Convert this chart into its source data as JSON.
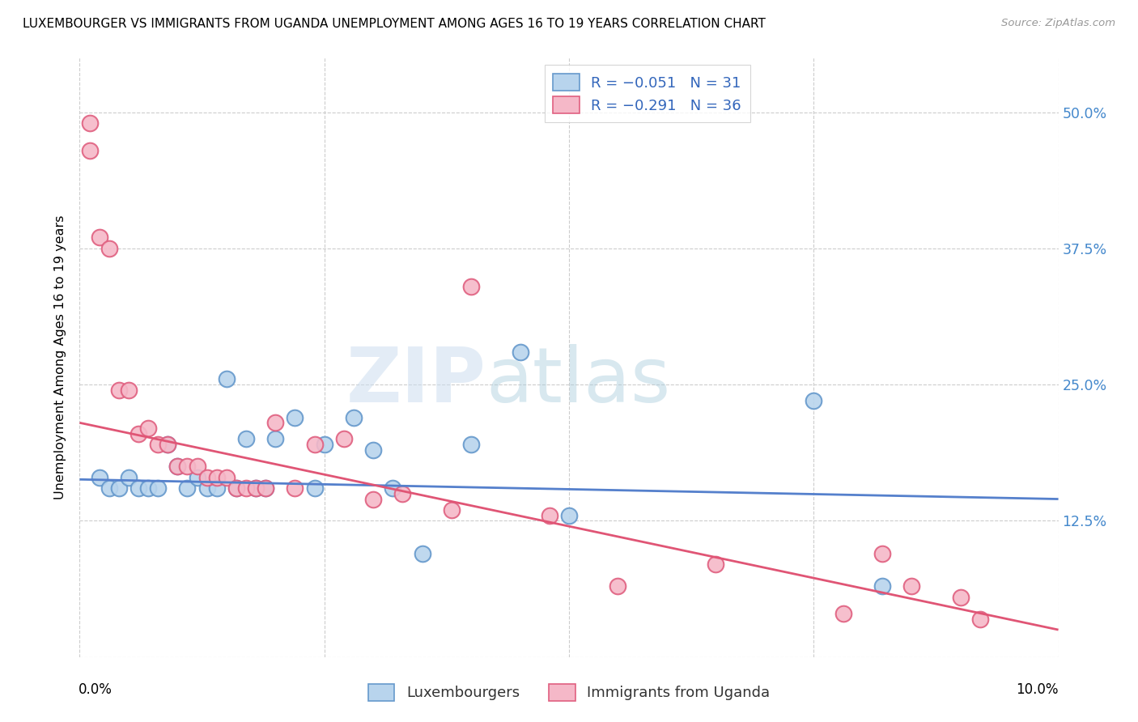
{
  "title": "LUXEMBOURGER VS IMMIGRANTS FROM UGANDA UNEMPLOYMENT AMONG AGES 16 TO 19 YEARS CORRELATION CHART",
  "source": "Source: ZipAtlas.com",
  "ylabel": "Unemployment Among Ages 16 to 19 years",
  "xlim": [
    0.0,
    0.1
  ],
  "ylim": [
    0.0,
    0.55
  ],
  "yticks": [
    0.0,
    0.125,
    0.25,
    0.375,
    0.5
  ],
  "ytick_labels": [
    "",
    "12.5%",
    "25.0%",
    "37.5%",
    "50.0%"
  ],
  "xticks_minor": [
    0.025,
    0.05,
    0.075
  ],
  "legend_r1": "R = −0.051",
  "legend_n1": "N = 31",
  "legend_r2": "R = −0.291",
  "legend_n2": "N = 36",
  "legend_footer1": "Luxembourgers",
  "legend_footer2": "Immigrants from Uganda",
  "blue_fill": "#b8d4ed",
  "blue_edge": "#6699cc",
  "pink_fill": "#f5b8c8",
  "pink_edge": "#e06080",
  "line_blue_color": "#5580cc",
  "line_pink_color": "#e05575",
  "blue_scatter_x": [
    0.002,
    0.003,
    0.004,
    0.005,
    0.006,
    0.007,
    0.008,
    0.009,
    0.01,
    0.011,
    0.012,
    0.013,
    0.014,
    0.015,
    0.016,
    0.017,
    0.018,
    0.019,
    0.02,
    0.022,
    0.024,
    0.025,
    0.028,
    0.03,
    0.032,
    0.035,
    0.04,
    0.045,
    0.05,
    0.075,
    0.082
  ],
  "blue_scatter_y": [
    0.165,
    0.155,
    0.155,
    0.165,
    0.155,
    0.155,
    0.155,
    0.195,
    0.175,
    0.155,
    0.165,
    0.155,
    0.155,
    0.255,
    0.155,
    0.2,
    0.155,
    0.155,
    0.2,
    0.22,
    0.155,
    0.195,
    0.22,
    0.19,
    0.155,
    0.095,
    0.195,
    0.28,
    0.13,
    0.235,
    0.065
  ],
  "pink_scatter_x": [
    0.001,
    0.001,
    0.002,
    0.003,
    0.004,
    0.005,
    0.006,
    0.007,
    0.008,
    0.009,
    0.01,
    0.011,
    0.012,
    0.013,
    0.014,
    0.015,
    0.016,
    0.017,
    0.018,
    0.019,
    0.02,
    0.022,
    0.024,
    0.027,
    0.03,
    0.033,
    0.038,
    0.04,
    0.048,
    0.055,
    0.065,
    0.078,
    0.082,
    0.085,
    0.09,
    0.092
  ],
  "pink_scatter_y": [
    0.49,
    0.465,
    0.385,
    0.375,
    0.245,
    0.245,
    0.205,
    0.21,
    0.195,
    0.195,
    0.175,
    0.175,
    0.175,
    0.165,
    0.165,
    0.165,
    0.155,
    0.155,
    0.155,
    0.155,
    0.215,
    0.155,
    0.195,
    0.2,
    0.145,
    0.15,
    0.135,
    0.34,
    0.13,
    0.065,
    0.085,
    0.04,
    0.095,
    0.065,
    0.055,
    0.035
  ],
  "blue_line_x": [
    0.0,
    0.1
  ],
  "blue_line_y": [
    0.163,
    0.145
  ],
  "pink_line_x": [
    0.0,
    0.1
  ],
  "pink_line_y": [
    0.215,
    0.025
  ]
}
